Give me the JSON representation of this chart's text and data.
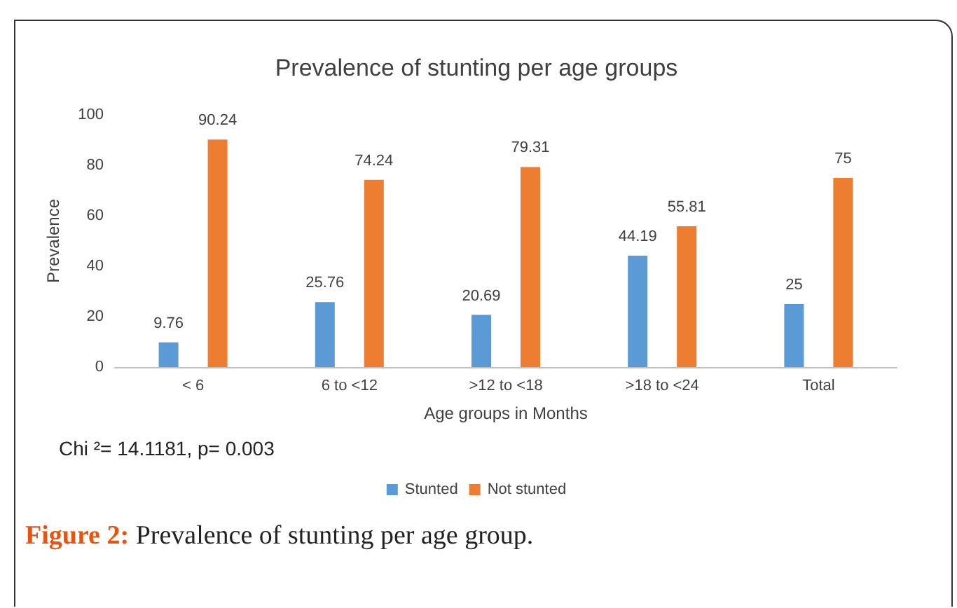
{
  "chart_data": {
    "type": "bar",
    "title": "Prevalence of stunting per age groups",
    "xlabel": "Age groups in Months",
    "ylabel": "Prevalence",
    "categories": [
      "< 6",
      "6 to <12",
      ">12 to <18",
      ">18 to <24",
      "Total"
    ],
    "series": [
      {
        "name": "Stunted",
        "color": "#5b9bd5",
        "values": [
          9.76,
          25.76,
          20.69,
          44.19,
          25
        ]
      },
      {
        "name": "Not stunted",
        "color": "#ed7d31",
        "values": [
          90.24,
          74.24,
          79.31,
          55.81,
          75
        ]
      }
    ],
    "ylim": [
      0,
      100
    ],
    "yticks": [
      0,
      20,
      40,
      60,
      80,
      100
    ],
    "grid": false,
    "legend": "bottom",
    "data_labels": true,
    "annotations": [
      "Chi ²= 14.1181, p= 0.003",
      "Figure 2: Prevalence of stunting per age group."
    ]
  }
}
